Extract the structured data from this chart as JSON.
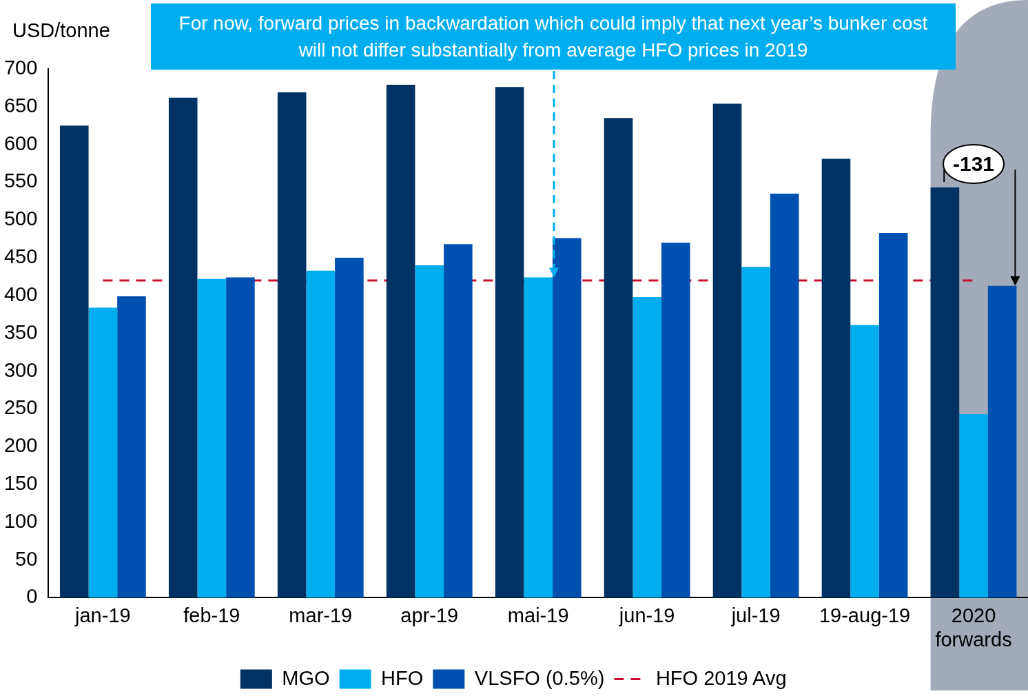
{
  "chart_data": {
    "type": "bar",
    "title": "For now, forward prices in backwardation which could imply that next year’s bunker cost will not differ substantially from average HFO prices in 2019",
    "ylabel": "USD/tonne",
    "categories": [
      "jan-19",
      "feb-19",
      "mar-19",
      "apr-19",
      "mai-19",
      "jun-19",
      "jul-19",
      "19-aug-19",
      "2020 forwards"
    ],
    "series": [
      {
        "name": "MGO",
        "color": "#003263",
        "values": [
          625,
          662,
          669,
          679,
          676,
          635,
          654,
          581,
          543
        ]
      },
      {
        "name": "HFO",
        "color": "#00aeef",
        "values": [
          384,
          422,
          433,
          440,
          424,
          398,
          438,
          361,
          243
        ]
      },
      {
        "name": "VLSFO (0.5%)",
        "color": "#0050b0",
        "values": [
          399,
          424,
          450,
          468,
          476,
          470,
          535,
          483,
          413
        ]
      }
    ],
    "ylim": [
      0,
      700
    ],
    "yticks": [
      0,
      50,
      100,
      150,
      200,
      250,
      300,
      350,
      400,
      450,
      500,
      550,
      600,
      650,
      700
    ],
    "ref_lines": [
      {
        "axis": "y",
        "value": 420,
        "label": "HFO 2019 Avg",
        "color": "#c8102e",
        "line_style": "dashed"
      }
    ],
    "bands": [
      {
        "axis": "x",
        "from": "2020 forwards",
        "to": "2020 forwards",
        "color": "#a3abb8"
      }
    ],
    "annotations": [
      "-131"
    ],
    "legend": "bottom"
  }
}
